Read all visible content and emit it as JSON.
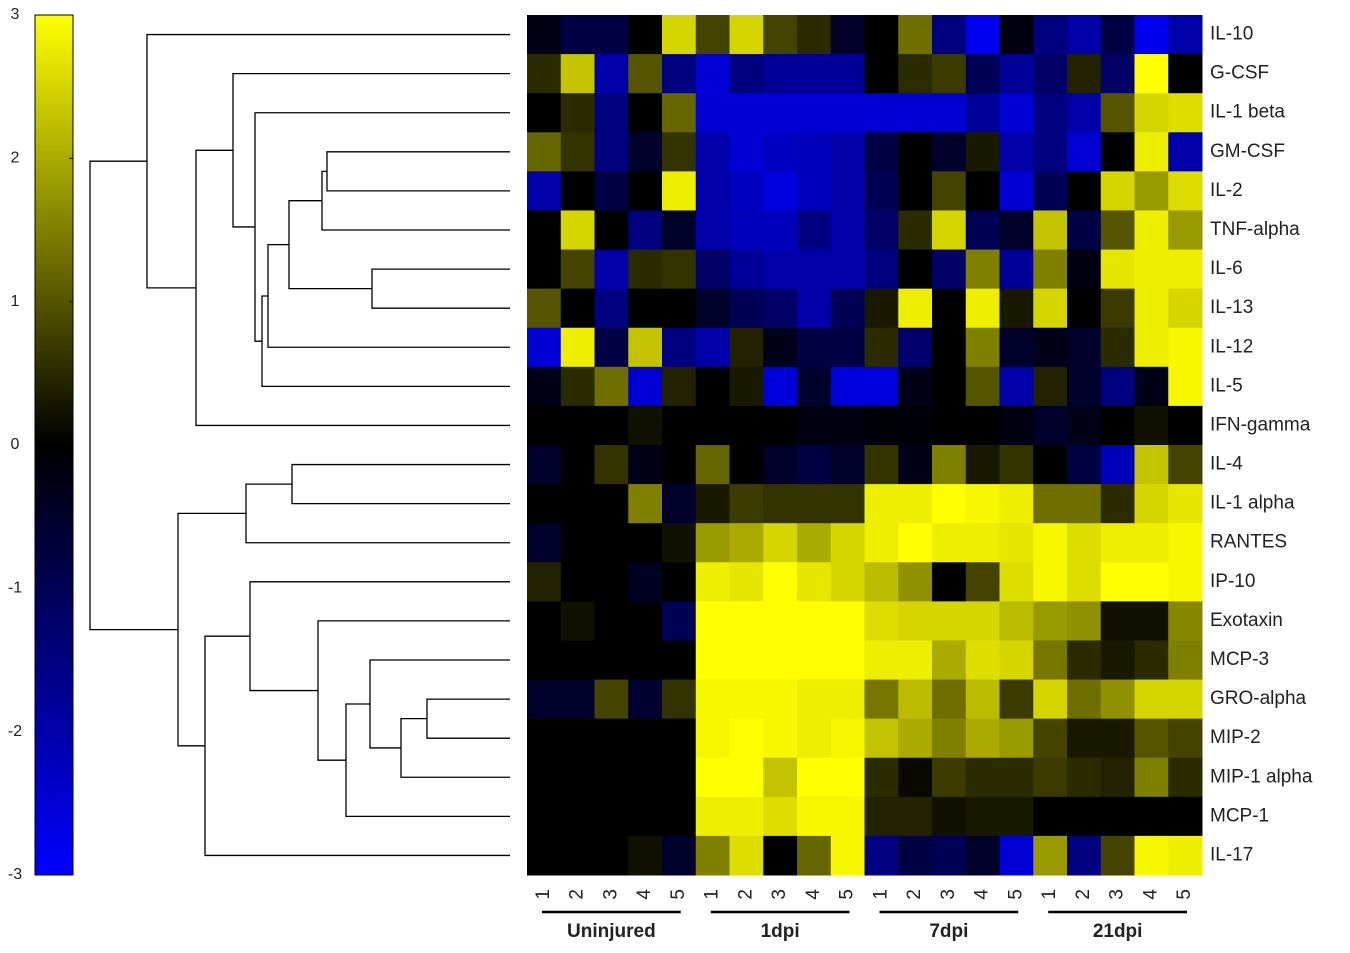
{
  "chart_data": {
    "type": "heatmap",
    "rows": [
      "IL-10",
      "G-CSF",
      "IL-1 beta",
      "GM-CSF",
      "IL-2",
      "TNF-alpha",
      "IL-6",
      "IL-13",
      "IL-12",
      "IL-5",
      "IFN-gamma",
      "IL-4",
      "IL-1 alpha",
      "RANTES",
      "IP-10",
      "Exotaxin",
      "MCP-3",
      "GRO-alpha",
      "MIP-2",
      "MIP-1 alpha",
      "MCP-1",
      "IL-17"
    ],
    "column_groups": [
      {
        "name": "Uninjured",
        "columns": [
          "1",
          "2",
          "3",
          "4",
          "5"
        ]
      },
      {
        "name": "1dpi",
        "columns": [
          "1",
          "2",
          "3",
          "4",
          "5"
        ]
      },
      {
        "name": "7dpi",
        "columns": [
          "1",
          "2",
          "3",
          "4",
          "5"
        ]
      },
      {
        "name": "21dpi",
        "columns": [
          "1",
          "2",
          "3",
          "4",
          "5"
        ]
      }
    ],
    "values": [
      [
        -0.3,
        -0.8,
        -0.8,
        0,
        2.5,
        0.8,
        2.5,
        0.8,
        0.5,
        -0.5,
        0,
        1.3,
        -1.5,
        -2.8,
        -0.2,
        -1.5,
        -2,
        -0.8,
        -2.8,
        -2
      ],
      [
        0.5,
        2.3,
        -2,
        1,
        -1.5,
        -2.5,
        -1.5,
        -1.8,
        -1.8,
        -1.8,
        0,
        0.5,
        0.7,
        -1,
        -1.8,
        -1.2,
        0.4,
        -1.2,
        3,
        0
      ],
      [
        0,
        0.5,
        -1.5,
        0,
        1.2,
        -2.5,
        -2.5,
        -2.5,
        -2.5,
        -2.5,
        -2.5,
        -2.5,
        -2.5,
        -1.8,
        -2.5,
        -1.5,
        -2,
        1,
        2.5,
        2.6
      ],
      [
        1.2,
        0.6,
        -1.5,
        -0.5,
        0.6,
        -2,
        -2.5,
        -2.3,
        -2.2,
        -2,
        -0.8,
        0,
        -0.5,
        0.3,
        -2,
        -1.5,
        -2.5,
        0,
        2.8,
        -2
      ],
      [
        -2,
        0,
        -0.8,
        0,
        2.8,
        -2,
        -2.3,
        -2.6,
        -2.2,
        -2,
        -1,
        0,
        0.8,
        0,
        -2.5,
        -1,
        0,
        2.5,
        1.8,
        2.6
      ],
      [
        0,
        2.5,
        0,
        -1.5,
        -0.5,
        -2,
        -2.2,
        -2.2,
        -1.5,
        -2,
        -1.2,
        0.5,
        2.5,
        -1,
        -0.5,
        2.3,
        -0.8,
        1,
        2.8,
        1.8
      ],
      [
        0,
        0.8,
        -2,
        0.5,
        0.6,
        -1.2,
        -1.8,
        -2,
        -2,
        -2,
        -1.5,
        0,
        -1.2,
        1.5,
        -1.8,
        1.5,
        -0.2,
        2.7,
        2.8,
        2.8
      ],
      [
        1,
        0,
        -1.5,
        0,
        0,
        -0.5,
        -1,
        -1.2,
        -2,
        -1,
        0.3,
        2.8,
        0,
        2.8,
        0.3,
        2.5,
        0,
        0.7,
        2.8,
        2.5
      ],
      [
        -2.5,
        2.8,
        -0.8,
        2.3,
        -1.5,
        -2,
        0.4,
        -0.3,
        -0.8,
        -0.8,
        0.5,
        -1.3,
        0,
        1.5,
        -0.5,
        -0.3,
        -0.5,
        0.5,
        2.8,
        2.9
      ],
      [
        -0.3,
        0.5,
        1.3,
        -2.5,
        0.4,
        0,
        0.3,
        -2.6,
        -0.5,
        -2.6,
        -2.6,
        -0.3,
        0,
        1,
        -2,
        0.4,
        -0.5,
        -1.5,
        -0.3,
        2.9
      ],
      [
        0,
        0,
        0,
        0.2,
        0,
        0,
        0,
        0,
        -0.2,
        -0.2,
        -0.1,
        -0.1,
        0,
        0,
        -0.2,
        -0.5,
        -0.3,
        0,
        0.2,
        0
      ],
      [
        -0.5,
        0,
        0.6,
        -0.3,
        0,
        1.2,
        0,
        -0.5,
        -0.8,
        -0.5,
        0.6,
        -0.3,
        1.5,
        0.3,
        0.6,
        0,
        -0.8,
        -2.2,
        2.3,
        0.8
      ],
      [
        0,
        0,
        0,
        1.5,
        -0.5,
        0.3,
        0.7,
        0.6,
        0.6,
        0.6,
        2.8,
        2.8,
        3,
        2.9,
        2.8,
        1.3,
        1.3,
        0.5,
        2.5,
        2.7
      ],
      [
        -0.5,
        0,
        0,
        0,
        0.2,
        1.8,
        2,
        2.5,
        2,
        2.5,
        2.8,
        3,
        2.8,
        2.8,
        2.7,
        2.9,
        2.6,
        2.8,
        2.8,
        2.9
      ],
      [
        0.4,
        0,
        0,
        -0.4,
        0,
        2.8,
        2.7,
        3,
        2.7,
        2.5,
        2.2,
        1.7,
        0,
        0.8,
        2.6,
        2.9,
        2.6,
        3,
        3,
        2.9
      ],
      [
        0,
        0.2,
        0,
        0,
        -1,
        3,
        3,
        3,
        3,
        3,
        2.6,
        2.5,
        2.5,
        2.5,
        2.2,
        1.8,
        1.7,
        0.2,
        0.2,
        1.6
      ],
      [
        0,
        0,
        0,
        0,
        0,
        3,
        3,
        3,
        3,
        3,
        2.8,
        2.8,
        2,
        2.6,
        2.5,
        1.4,
        0.5,
        0.3,
        0.5,
        1.5
      ],
      [
        -0.5,
        -0.5,
        0.8,
        -0.6,
        0.6,
        2.9,
        2.9,
        2.9,
        2.8,
        2.8,
        1.4,
        2.2,
        1.3,
        2.2,
        0.7,
        2.5,
        1.3,
        1.7,
        2.5,
        2.5
      ],
      [
        0,
        0,
        0,
        0,
        0,
        2.9,
        3,
        2.9,
        2.8,
        2.9,
        2.3,
        2,
        1.5,
        2,
        1.8,
        0.8,
        0.3,
        0.3,
        1,
        0.8
      ],
      [
        0,
        0,
        0,
        0,
        0,
        3,
        3,
        2.3,
        3,
        3,
        0.5,
        0.1,
        0.7,
        0.5,
        0.5,
        0.7,
        0.5,
        0.4,
        1.5,
        0.5
      ],
      [
        0,
        0,
        0,
        0,
        0,
        2.8,
        2.8,
        2.6,
        2.9,
        2.9,
        0.4,
        0.4,
        0.2,
        0.3,
        0.3,
        0,
        0,
        0,
        0,
        0
      ],
      [
        0,
        0,
        0,
        0.2,
        -0.5,
        1.5,
        2.6,
        0,
        1.2,
        2.9,
        -1.5,
        -0.8,
        -1,
        -0.5,
        -2.5,
        1.8,
        -1.5,
        0.8,
        2.9,
        2.8
      ]
    ],
    "zlim": [
      -3,
      3
    ],
    "zticks": [
      3,
      2,
      1,
      0,
      -1,
      -2,
      -3
    ],
    "colors": {
      "low": "#0000ff",
      "mid": "#000000",
      "high": "#ffff00"
    }
  }
}
